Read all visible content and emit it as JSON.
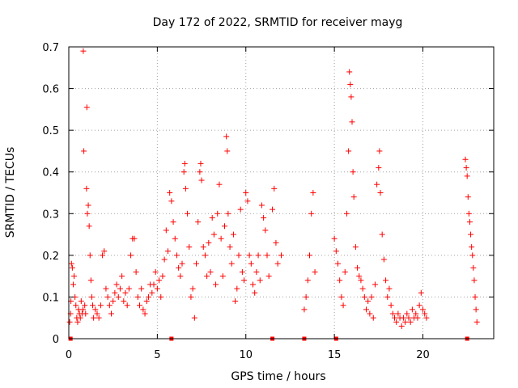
{
  "chart_data": {
    "type": "scatter",
    "title": "Day 172 of 2022, SRMTID for receiver mayg",
    "xlabel": "GPS time / hours",
    "ylabel": "SRMTID / TECUs",
    "xlim": [
      0,
      24
    ],
    "ylim": [
      0,
      0.7
    ],
    "xticks": [
      0,
      5,
      10,
      15,
      20
    ],
    "xtick_labels": [
      "0",
      "5",
      "10",
      "15",
      "20"
    ],
    "yticks": [
      0,
      0.1,
      0.2,
      0.3,
      0.4,
      0.5,
      0.6,
      0.7
    ],
    "ytick_labels": [
      "0",
      "0.1",
      "0.2",
      "0.3",
      "0.4",
      "0.5",
      "0.6",
      "0.7"
    ],
    "grid": true,
    "marker": "+",
    "color": "#ff0000",
    "series": [
      {
        "name": "SRMTID",
        "points": [
          [
            0.05,
            0.04
          ],
          [
            0.1,
            0.06
          ],
          [
            0.12,
            0.09
          ],
          [
            0.15,
            0.18
          ],
          [
            0.2,
            0.17
          ],
          [
            0.25,
            0.13
          ],
          [
            0.3,
            0.15
          ],
          [
            0.35,
            0.1
          ],
          [
            0.4,
            0.08
          ],
          [
            0.45,
            0.05
          ],
          [
            0.5,
            0.04
          ],
          [
            0.55,
            0.07
          ],
          [
            0.6,
            0.06
          ],
          [
            0.65,
            0.05
          ],
          [
            0.7,
            0.09
          ],
          [
            0.75,
            0.06
          ],
          [
            0.8,
            0.07
          ],
          [
            0.82,
            0.69
          ],
          [
            0.85,
            0.45
          ],
          [
            0.9,
            0.08
          ],
          [
            0.95,
            0.06
          ],
          [
            1.0,
            0.36
          ],
          [
            1.02,
            0.555
          ],
          [
            1.05,
            0.3
          ],
          [
            1.1,
            0.32
          ],
          [
            1.15,
            0.27
          ],
          [
            1.2,
            0.2
          ],
          [
            1.25,
            0.14
          ],
          [
            1.3,
            0.1
          ],
          [
            1.35,
            0.08
          ],
          [
            1.4,
            0.05
          ],
          [
            1.5,
            0.07
          ],
          [
            1.6,
            0.06
          ],
          [
            1.7,
            0.05
          ],
          [
            1.8,
            0.08
          ],
          [
            1.9,
            0.2
          ],
          [
            2.0,
            0.21
          ],
          [
            2.1,
            0.12
          ],
          [
            2.2,
            0.1
          ],
          [
            2.3,
            0.08
          ],
          [
            2.4,
            0.06
          ],
          [
            2.5,
            0.09
          ],
          [
            2.6,
            0.11
          ],
          [
            2.7,
            0.13
          ],
          [
            2.8,
            0.1
          ],
          [
            2.9,
            0.12
          ],
          [
            3.0,
            0.15
          ],
          [
            3.1,
            0.09
          ],
          [
            3.2,
            0.11
          ],
          [
            3.3,
            0.08
          ],
          [
            3.4,
            0.12
          ],
          [
            3.5,
            0.2
          ],
          [
            3.6,
            0.24
          ],
          [
            3.7,
            0.24
          ],
          [
            3.8,
            0.16
          ],
          [
            3.9,
            0.1
          ],
          [
            4.0,
            0.08
          ],
          [
            4.1,
            0.12
          ],
          [
            4.2,
            0.07
          ],
          [
            4.3,
            0.06
          ],
          [
            4.4,
            0.09
          ],
          [
            4.5,
            0.1
          ],
          [
            4.6,
            0.13
          ],
          [
            4.7,
            0.11
          ],
          [
            4.8,
            0.13
          ],
          [
            4.9,
            0.16
          ],
          [
            5.0,
            0.12
          ],
          [
            5.1,
            0.14
          ],
          [
            5.2,
            0.1
          ],
          [
            5.3,
            0.15
          ],
          [
            5.4,
            0.19
          ],
          [
            5.5,
            0.26
          ],
          [
            5.6,
            0.21
          ],
          [
            5.7,
            0.35
          ],
          [
            5.8,
            0.33
          ],
          [
            5.9,
            0.28
          ],
          [
            6.0,
            0.24
          ],
          [
            6.1,
            0.2
          ],
          [
            6.2,
            0.17
          ],
          [
            6.3,
            0.15
          ],
          [
            6.4,
            0.18
          ],
          [
            6.5,
            0.4
          ],
          [
            6.55,
            0.42
          ],
          [
            6.6,
            0.36
          ],
          [
            6.7,
            0.3
          ],
          [
            6.8,
            0.22
          ],
          [
            6.9,
            0.1
          ],
          [
            7.0,
            0.12
          ],
          [
            7.1,
            0.05
          ],
          [
            7.2,
            0.18
          ],
          [
            7.3,
            0.28
          ],
          [
            7.4,
            0.4
          ],
          [
            7.45,
            0.42
          ],
          [
            7.5,
            0.38
          ],
          [
            7.6,
            0.22
          ],
          [
            7.7,
            0.2
          ],
          [
            7.8,
            0.15
          ],
          [
            7.9,
            0.23
          ],
          [
            8.0,
            0.16
          ],
          [
            8.1,
            0.29
          ],
          [
            8.2,
            0.25
          ],
          [
            8.3,
            0.13
          ],
          [
            8.4,
            0.3
          ],
          [
            8.5,
            0.37
          ],
          [
            8.6,
            0.24
          ],
          [
            8.7,
            0.15
          ],
          [
            8.8,
            0.27
          ],
          [
            8.9,
            0.485
          ],
          [
            8.95,
            0.45
          ],
          [
            9.0,
            0.3
          ],
          [
            9.1,
            0.22
          ],
          [
            9.2,
            0.18
          ],
          [
            9.3,
            0.25
          ],
          [
            9.4,
            0.09
          ],
          [
            9.5,
            0.12
          ],
          [
            9.6,
            0.2
          ],
          [
            9.7,
            0.31
          ],
          [
            9.8,
            0.16
          ],
          [
            9.9,
            0.14
          ],
          [
            10.0,
            0.35
          ],
          [
            10.1,
            0.33
          ],
          [
            10.2,
            0.2
          ],
          [
            10.3,
            0.18
          ],
          [
            10.4,
            0.13
          ],
          [
            10.5,
            0.11
          ],
          [
            10.6,
            0.16
          ],
          [
            10.7,
            0.2
          ],
          [
            10.8,
            0.14
          ],
          [
            10.9,
            0.32
          ],
          [
            11.0,
            0.29
          ],
          [
            11.1,
            0.26
          ],
          [
            11.2,
            0.2
          ],
          [
            11.3,
            0.15
          ],
          [
            11.5,
            0.31
          ],
          [
            11.6,
            0.36
          ],
          [
            11.7,
            0.23
          ],
          [
            11.8,
            0.18
          ],
          [
            12.0,
            0.2
          ],
          [
            13.3,
            0.07
          ],
          [
            13.4,
            0.1
          ],
          [
            13.5,
            0.14
          ],
          [
            13.6,
            0.2
          ],
          [
            13.7,
            0.3
          ],
          [
            13.8,
            0.35
          ],
          [
            13.9,
            0.16
          ],
          [
            15.0,
            0.24
          ],
          [
            15.1,
            0.21
          ],
          [
            15.2,
            0.18
          ],
          [
            15.3,
            0.14
          ],
          [
            15.4,
            0.1
          ],
          [
            15.5,
            0.08
          ],
          [
            15.6,
            0.16
          ],
          [
            15.7,
            0.3
          ],
          [
            15.8,
            0.45
          ],
          [
            15.85,
            0.64
          ],
          [
            15.9,
            0.61
          ],
          [
            15.95,
            0.58
          ],
          [
            16.0,
            0.52
          ],
          [
            16.05,
            0.4
          ],
          [
            16.1,
            0.34
          ],
          [
            16.2,
            0.22
          ],
          [
            16.3,
            0.17
          ],
          [
            16.4,
            0.15
          ],
          [
            16.5,
            0.14
          ],
          [
            16.6,
            0.12
          ],
          [
            16.7,
            0.1
          ],
          [
            16.8,
            0.07
          ],
          [
            16.9,
            0.09
          ],
          [
            17.0,
            0.06
          ],
          [
            17.1,
            0.1
          ],
          [
            17.2,
            0.05
          ],
          [
            17.3,
            0.13
          ],
          [
            17.4,
            0.37
          ],
          [
            17.5,
            0.41
          ],
          [
            17.55,
            0.45
          ],
          [
            17.6,
            0.35
          ],
          [
            17.7,
            0.25
          ],
          [
            17.8,
            0.19
          ],
          [
            17.9,
            0.14
          ],
          [
            18.0,
            0.1
          ],
          [
            18.1,
            0.12
          ],
          [
            18.2,
            0.08
          ],
          [
            18.3,
            0.06
          ],
          [
            18.4,
            0.05
          ],
          [
            18.5,
            0.04
          ],
          [
            18.6,
            0.06
          ],
          [
            18.7,
            0.05
          ],
          [
            18.8,
            0.03
          ],
          [
            18.9,
            0.05
          ],
          [
            19.0,
            0.04
          ],
          [
            19.1,
            0.06
          ],
          [
            19.2,
            0.05
          ],
          [
            19.3,
            0.04
          ],
          [
            19.4,
            0.07
          ],
          [
            19.5,
            0.05
          ],
          [
            19.6,
            0.06
          ],
          [
            19.7,
            0.05
          ],
          [
            19.8,
            0.08
          ],
          [
            19.9,
            0.11
          ],
          [
            20.0,
            0.07
          ],
          [
            20.1,
            0.06
          ],
          [
            20.2,
            0.05
          ],
          [
            22.4,
            0.43
          ],
          [
            22.45,
            0.41
          ],
          [
            22.5,
            0.39
          ],
          [
            22.55,
            0.34
          ],
          [
            22.6,
            0.3
          ],
          [
            22.65,
            0.28
          ],
          [
            22.7,
            0.25
          ],
          [
            22.75,
            0.22
          ],
          [
            22.8,
            0.2
          ],
          [
            22.85,
            0.17
          ],
          [
            22.9,
            0.14
          ],
          [
            22.95,
            0.1
          ],
          [
            23.0,
            0.07
          ],
          [
            23.05,
            0.04
          ]
        ],
        "edge_points": [
          0.1,
          5.8,
          11.5,
          13.3,
          15.1,
          22.5
        ]
      }
    ]
  }
}
